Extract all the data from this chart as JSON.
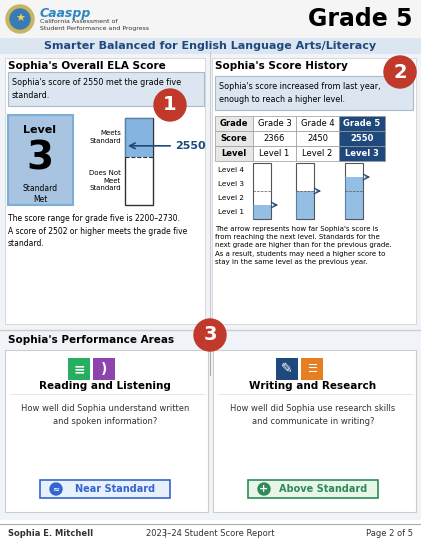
{
  "title_grade": "Grade 5",
  "org_name": "California Assessment of\nStudent Performance and Progress",
  "subtitle": "Smarter Balanced for English Language Arts/Literacy",
  "section1_title": "Sophia's Overall ELA Score",
  "section2_title": "Sophia's Score History",
  "section3_title": "Sophia's Performance Areas",
  "score_box_text": "Sophia's score of 2550 met the grade five\nstandard.",
  "score_history_text": "Sophia's score increased from last year,\nenough to reach a higher level.",
  "level_number": "3",
  "level_label": "Standard\nMet",
  "meets_standard_label": "Meets\nStandard",
  "does_not_meet_label": "Does Not\nMeet\nStandard",
  "score_value": "◄2550",
  "score_range_text": "The score range for grade five is 2200–2730.\nA score of 2502 or higher meets the grade five\nstandard.",
  "arrow_text": "The arrow represents how far Sophia's score is\nfrom reaching the next level. Standards for the\nnext grade are higher than for the previous grade.\nAs a result, students may need a higher score to\nstay in the same level as the previous year.",
  "grade_table_headers": [
    "Grade",
    "Grade 3",
    "Grade 4",
    "Grade 5"
  ],
  "grade_table_scores": [
    "Score",
    "2366",
    "2450",
    "2550"
  ],
  "grade_table_levels": [
    "Level",
    "Level 1",
    "Level 2",
    "Level 3"
  ],
  "perf_area1_title": "Reading and Listening",
  "perf_area1_desc": "How well did Sophia understand written\nand spoken information?",
  "perf_area1_result": "Near Standard",
  "perf_area1_result_color": "#3366cc",
  "perf_area2_title": "Writing and Research",
  "perf_area2_desc": "How well did Sophia use research skills\nand communicate in writing?",
  "perf_area2_result": "Above Standard",
  "perf_area2_result_color": "#2e8b57",
  "footer_name": "Sophia E. Mitchell",
  "footer_sep": "|",
  "footer_year": "2023–24 Student Score Report",
  "footer_page": "Page 2 of 5",
  "bg_color": "#ffffff",
  "subtitle_bg": "#dce6f1",
  "subtitle_color": "#1f497d",
  "callout_color": "#c0392b",
  "level_box_color": "#a8c4e0",
  "score_bar_dark": "#5b9bd5",
  "table_header_bg": "#1f497d"
}
